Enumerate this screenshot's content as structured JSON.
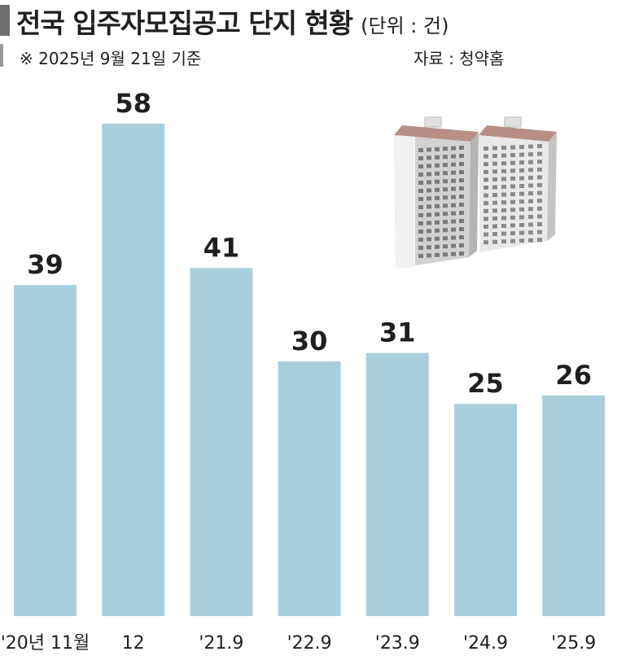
{
  "header": {
    "title": "전국 입주자모집공고 단지 현황",
    "unit": "(단위 : 건)",
    "date_note": "※ 2025년 9월 21일 기준",
    "source": "자료 : 청약홈"
  },
  "illustration": {
    "icon": "apartment-buildings-icon"
  },
  "colors": {
    "bar": "#a9cfdd",
    "text": "#1f1f1f"
  },
  "chart_data": {
    "type": "bar",
    "title": "전국 입주자모집공고 단지 현황",
    "categories": [
      "'20년 11월",
      "12",
      "'21.9",
      "'22.9",
      "'23.9",
      "'24.9",
      "'25.9"
    ],
    "values": [
      39,
      58,
      41,
      30,
      31,
      25,
      26
    ],
    "ylim": [
      0,
      58
    ],
    "grid": false,
    "legend": "none"
  }
}
